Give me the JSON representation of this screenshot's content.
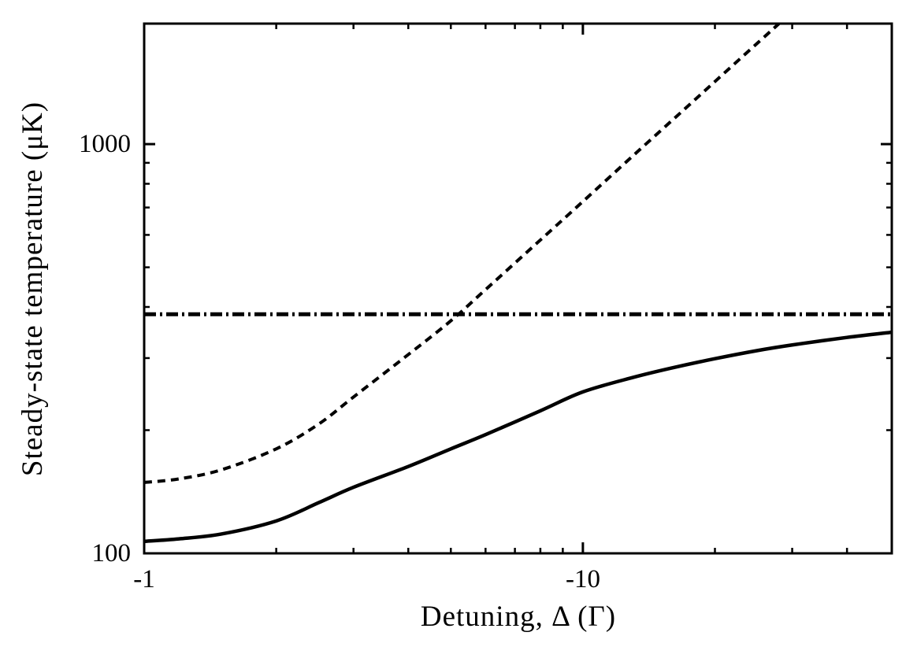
{
  "figure": {
    "background_color": "#ffffff",
    "ink_color": "#000000"
  },
  "chart_data": {
    "type": "line",
    "title": "",
    "xlabel": "Detuning, Δ (Γ)",
    "ylabel": "Steady-state temperature (μK)",
    "x_scale": "log",
    "y_scale": "log",
    "grid": false,
    "legend": "none",
    "x_axis": {
      "unit": "Γ",
      "direction": "negative detuning, magnitude increases rightward",
      "min_magnitude": 1,
      "max_magnitude": 50.6,
      "major_ticks": [
        {
          "value": -1,
          "label": "-1"
        },
        {
          "value": -10,
          "label": "-10"
        }
      ],
      "minor_ticks": [
        -2,
        -3,
        -4,
        -5,
        -6,
        -7,
        -8,
        -9,
        -20,
        -30,
        -40
      ]
    },
    "y_axis": {
      "unit": "μK",
      "min": 100,
      "max": 1970,
      "major_ticks": [
        {
          "value": 100,
          "label": "100"
        },
        {
          "value": 1000,
          "label": "1000"
        }
      ],
      "minor_ticks": [
        200,
        300,
        400,
        500,
        600,
        700,
        800,
        900
      ]
    },
    "series": [
      {
        "name": "solid-curve",
        "line_style": "solid",
        "points": [
          [
            -1,
            107
          ],
          [
            -1.2,
            108.5
          ],
          [
            -1.5,
            111.5
          ],
          [
            -2,
            120
          ],
          [
            -2.5,
            133
          ],
          [
            -3,
            145
          ],
          [
            -4,
            163
          ],
          [
            -5,
            180
          ],
          [
            -6,
            195
          ],
          [
            -8,
            223
          ],
          [
            -10,
            248
          ],
          [
            -13,
            269
          ],
          [
            -16,
            284
          ],
          [
            -20,
            299
          ],
          [
            -25,
            313
          ],
          [
            -30,
            323
          ],
          [
            -40,
            337
          ],
          [
            -50.6,
            347
          ]
        ]
      },
      {
        "name": "dashed-curve",
        "line_style": "dashed",
        "points": [
          [
            -1,
            149
          ],
          [
            -1.2,
            152
          ],
          [
            -1.5,
            160
          ],
          [
            -2,
            180
          ],
          [
            -2.5,
            207
          ],
          [
            -3,
            241
          ],
          [
            -4,
            306
          ],
          [
            -5,
            370
          ],
          [
            -6,
            441
          ],
          [
            -8,
            583
          ],
          [
            -10,
            724
          ],
          [
            -13,
            936
          ],
          [
            -17,
            1214
          ],
          [
            -22,
            1560
          ],
          [
            -28.5,
            2004
          ]
        ],
        "note": "rises roughly linearly with |detuning| on log-log axes, exits top of plot near -28"
      },
      {
        "name": "horizontal-dash-dot-line",
        "line_style": "dash-dot",
        "constant_value": 384,
        "note": "horizontal line spanning full detuning range at about 384 μK"
      }
    ]
  }
}
